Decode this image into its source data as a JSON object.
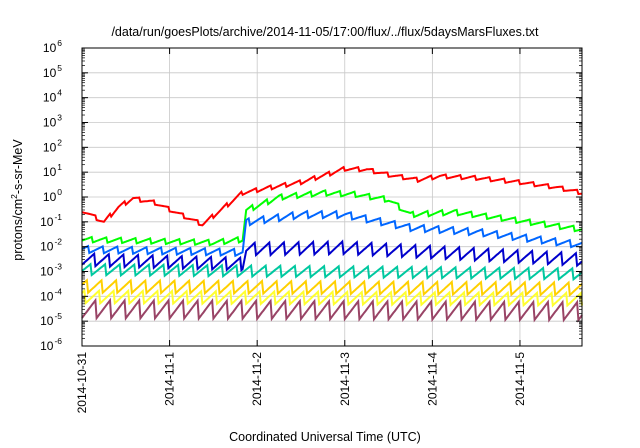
{
  "chart_data": {
    "type": "line",
    "title": "/data/run/goesPlots/archive/2014-11-05/17:00/flux/../flux/5daysMarsFluxes.txt",
    "xlabel": "Coordinated Universal Time (UTC)",
    "ylabel_parts": [
      "protons/cm",
      "2",
      "-s-sr-MeV"
    ],
    "y_scale": "log",
    "ylim": [
      1e-06,
      1000000.0
    ],
    "y_ticks": [
      {
        "base": "10",
        "exp": "-6",
        "value": 1e-06
      },
      {
        "base": "10",
        "exp": "-5",
        "value": 1e-05
      },
      {
        "base": "10",
        "exp": "-4",
        "value": 0.0001
      },
      {
        "base": "10",
        "exp": "-3",
        "value": 0.001
      },
      {
        "base": "10",
        "exp": "-2",
        "value": 0.01
      },
      {
        "base": "10",
        "exp": "-1",
        "value": 0.1
      },
      {
        "base": "10",
        "exp": "0",
        "value": 1
      },
      {
        "base": "10",
        "exp": "1",
        "value": 10
      },
      {
        "base": "10",
        "exp": "2",
        "value": 100
      },
      {
        "base": "10",
        "exp": "3",
        "value": 1000
      },
      {
        "base": "10",
        "exp": "4",
        "value": 10000
      },
      {
        "base": "10",
        "exp": "5",
        "value": 100000
      },
      {
        "base": "10",
        "exp": "6",
        "value": 1000000
      }
    ],
    "x_range": [
      "2014-10-31T00:00",
      "2014-11-05T17:00"
    ],
    "x_ticks": [
      "2014-10-31",
      "2014-11-1",
      "2014-11-2",
      "2014-11-3",
      "2014-11-4",
      "2014-11-5"
    ],
    "x_tick_dates": [
      "2014-10-31T00:00",
      "2014-11-01T00:00",
      "2014-11-02T00:00",
      "2014-11-03T00:00",
      "2014-11-04T00:00",
      "2014-11-05T00:00"
    ],
    "grid": true,
    "series": [
      {
        "color": "#ff0000",
        "anchors": [
          [
            "2014-10-31T00:00",
            0.3
          ],
          [
            "2014-10-31T06:00",
            0.1
          ],
          [
            "2014-10-31T10:00",
            0.4
          ],
          [
            "2014-10-31T14:00",
            0.9
          ],
          [
            "2014-10-31T20:00",
            0.6
          ],
          [
            "2014-11-01T03:00",
            0.2
          ],
          [
            "2014-11-01T09:00",
            0.08
          ],
          [
            "2014-11-01T14:00",
            0.3
          ],
          [
            "2014-11-01T20:00",
            1.5
          ],
          [
            "2014-11-02T04:00",
            2.5
          ],
          [
            "2014-11-02T12:00",
            4
          ],
          [
            "2014-11-02T20:00",
            9
          ],
          [
            "2014-11-03T00:00",
            14
          ],
          [
            "2014-11-03T06:00",
            13
          ],
          [
            "2014-11-03T12:00",
            8
          ],
          [
            "2014-11-03T20:00",
            5
          ],
          [
            "2014-11-04T02:00",
            7
          ],
          [
            "2014-11-04T12:00",
            6
          ],
          [
            "2014-11-05T00:00",
            4
          ],
          [
            "2014-11-05T10:00",
            2.5
          ],
          [
            "2014-11-05T17:00",
            1.5
          ]
        ],
        "amplitude": 1.5,
        "period_hours": 4,
        "phase_hours": 0
      },
      {
        "color": "#00ff00",
        "anchors": [
          [
            "2014-10-31T00:00",
            0.02
          ],
          [
            "2014-11-01T12:00",
            0.015
          ],
          [
            "2014-11-01T20:00",
            0.02
          ],
          [
            "2014-11-01T21:00",
            0.3
          ],
          [
            "2014-11-02T06:00",
            1.0
          ],
          [
            "2014-11-02T18:00",
            1.5
          ],
          [
            "2014-11-03T03:00",
            1.3
          ],
          [
            "2014-11-03T12:00",
            0.8
          ],
          [
            "2014-11-03T18:00",
            0.2
          ],
          [
            "2014-11-04T06:00",
            0.25
          ],
          [
            "2014-11-04T18:00",
            0.15
          ],
          [
            "2014-11-05T17:00",
            0.05
          ]
        ],
        "amplitude": 1.7,
        "period_hours": 4,
        "phase_hours": 1
      },
      {
        "color": "#0066ff",
        "anchors": [
          [
            "2014-10-31T00:00",
            0.008
          ],
          [
            "2014-11-01T20:00",
            0.006
          ],
          [
            "2014-11-01T21:00",
            0.1
          ],
          [
            "2014-11-02T12:00",
            0.2
          ],
          [
            "2014-11-03T00:00",
            0.2
          ],
          [
            "2014-11-03T18:00",
            0.06
          ],
          [
            "2014-11-04T12:00",
            0.04
          ],
          [
            "2014-11-05T17:00",
            0.012
          ]
        ],
        "amplitude": 2.0,
        "period_hours": 4,
        "phase_hours": 2
      },
      {
        "color": "#0000cc",
        "anchors": [
          [
            "2014-10-31T00:00",
            0.003
          ],
          [
            "2014-11-01T20:00",
            0.002
          ],
          [
            "2014-11-01T21:00",
            0.008
          ],
          [
            "2014-11-03T00:00",
            0.009
          ],
          [
            "2014-11-04T00:00",
            0.006
          ],
          [
            "2014-11-05T17:00",
            0.003
          ]
        ],
        "amplitude": 3.5,
        "period_hours": 4,
        "phase_hours": 0.5
      },
      {
        "color": "#00c8a0",
        "anchors": [
          [
            "2014-10-31T00:00",
            0.0012
          ],
          [
            "2014-11-05T17:00",
            0.0008
          ]
        ],
        "amplitude": 3.0,
        "period_hours": 4,
        "phase_hours": 1.5
      },
      {
        "color": "#ffd000",
        "anchors": [
          [
            "2014-10-31T00:00",
            0.00025
          ],
          [
            "2014-11-05T17:00",
            0.0002
          ]
        ],
        "amplitude": 3.5,
        "period_hours": 4,
        "phase_hours": 2.5
      },
      {
        "color": "#ffff30",
        "anchors": [
          [
            "2014-10-31T00:00",
            0.0001
          ],
          [
            "2014-11-05T17:00",
            8e-05
          ]
        ],
        "amplitude": 3.5,
        "period_hours": 4,
        "phase_hours": 3
      },
      {
        "color": "#994466",
        "anchors": [
          [
            "2014-10-31T00:00",
            3e-05
          ],
          [
            "2014-11-05T17:00",
            2.5e-05
          ]
        ],
        "amplitude": 6.0,
        "period_hours": 4,
        "phase_hours": 0.2
      }
    ]
  }
}
